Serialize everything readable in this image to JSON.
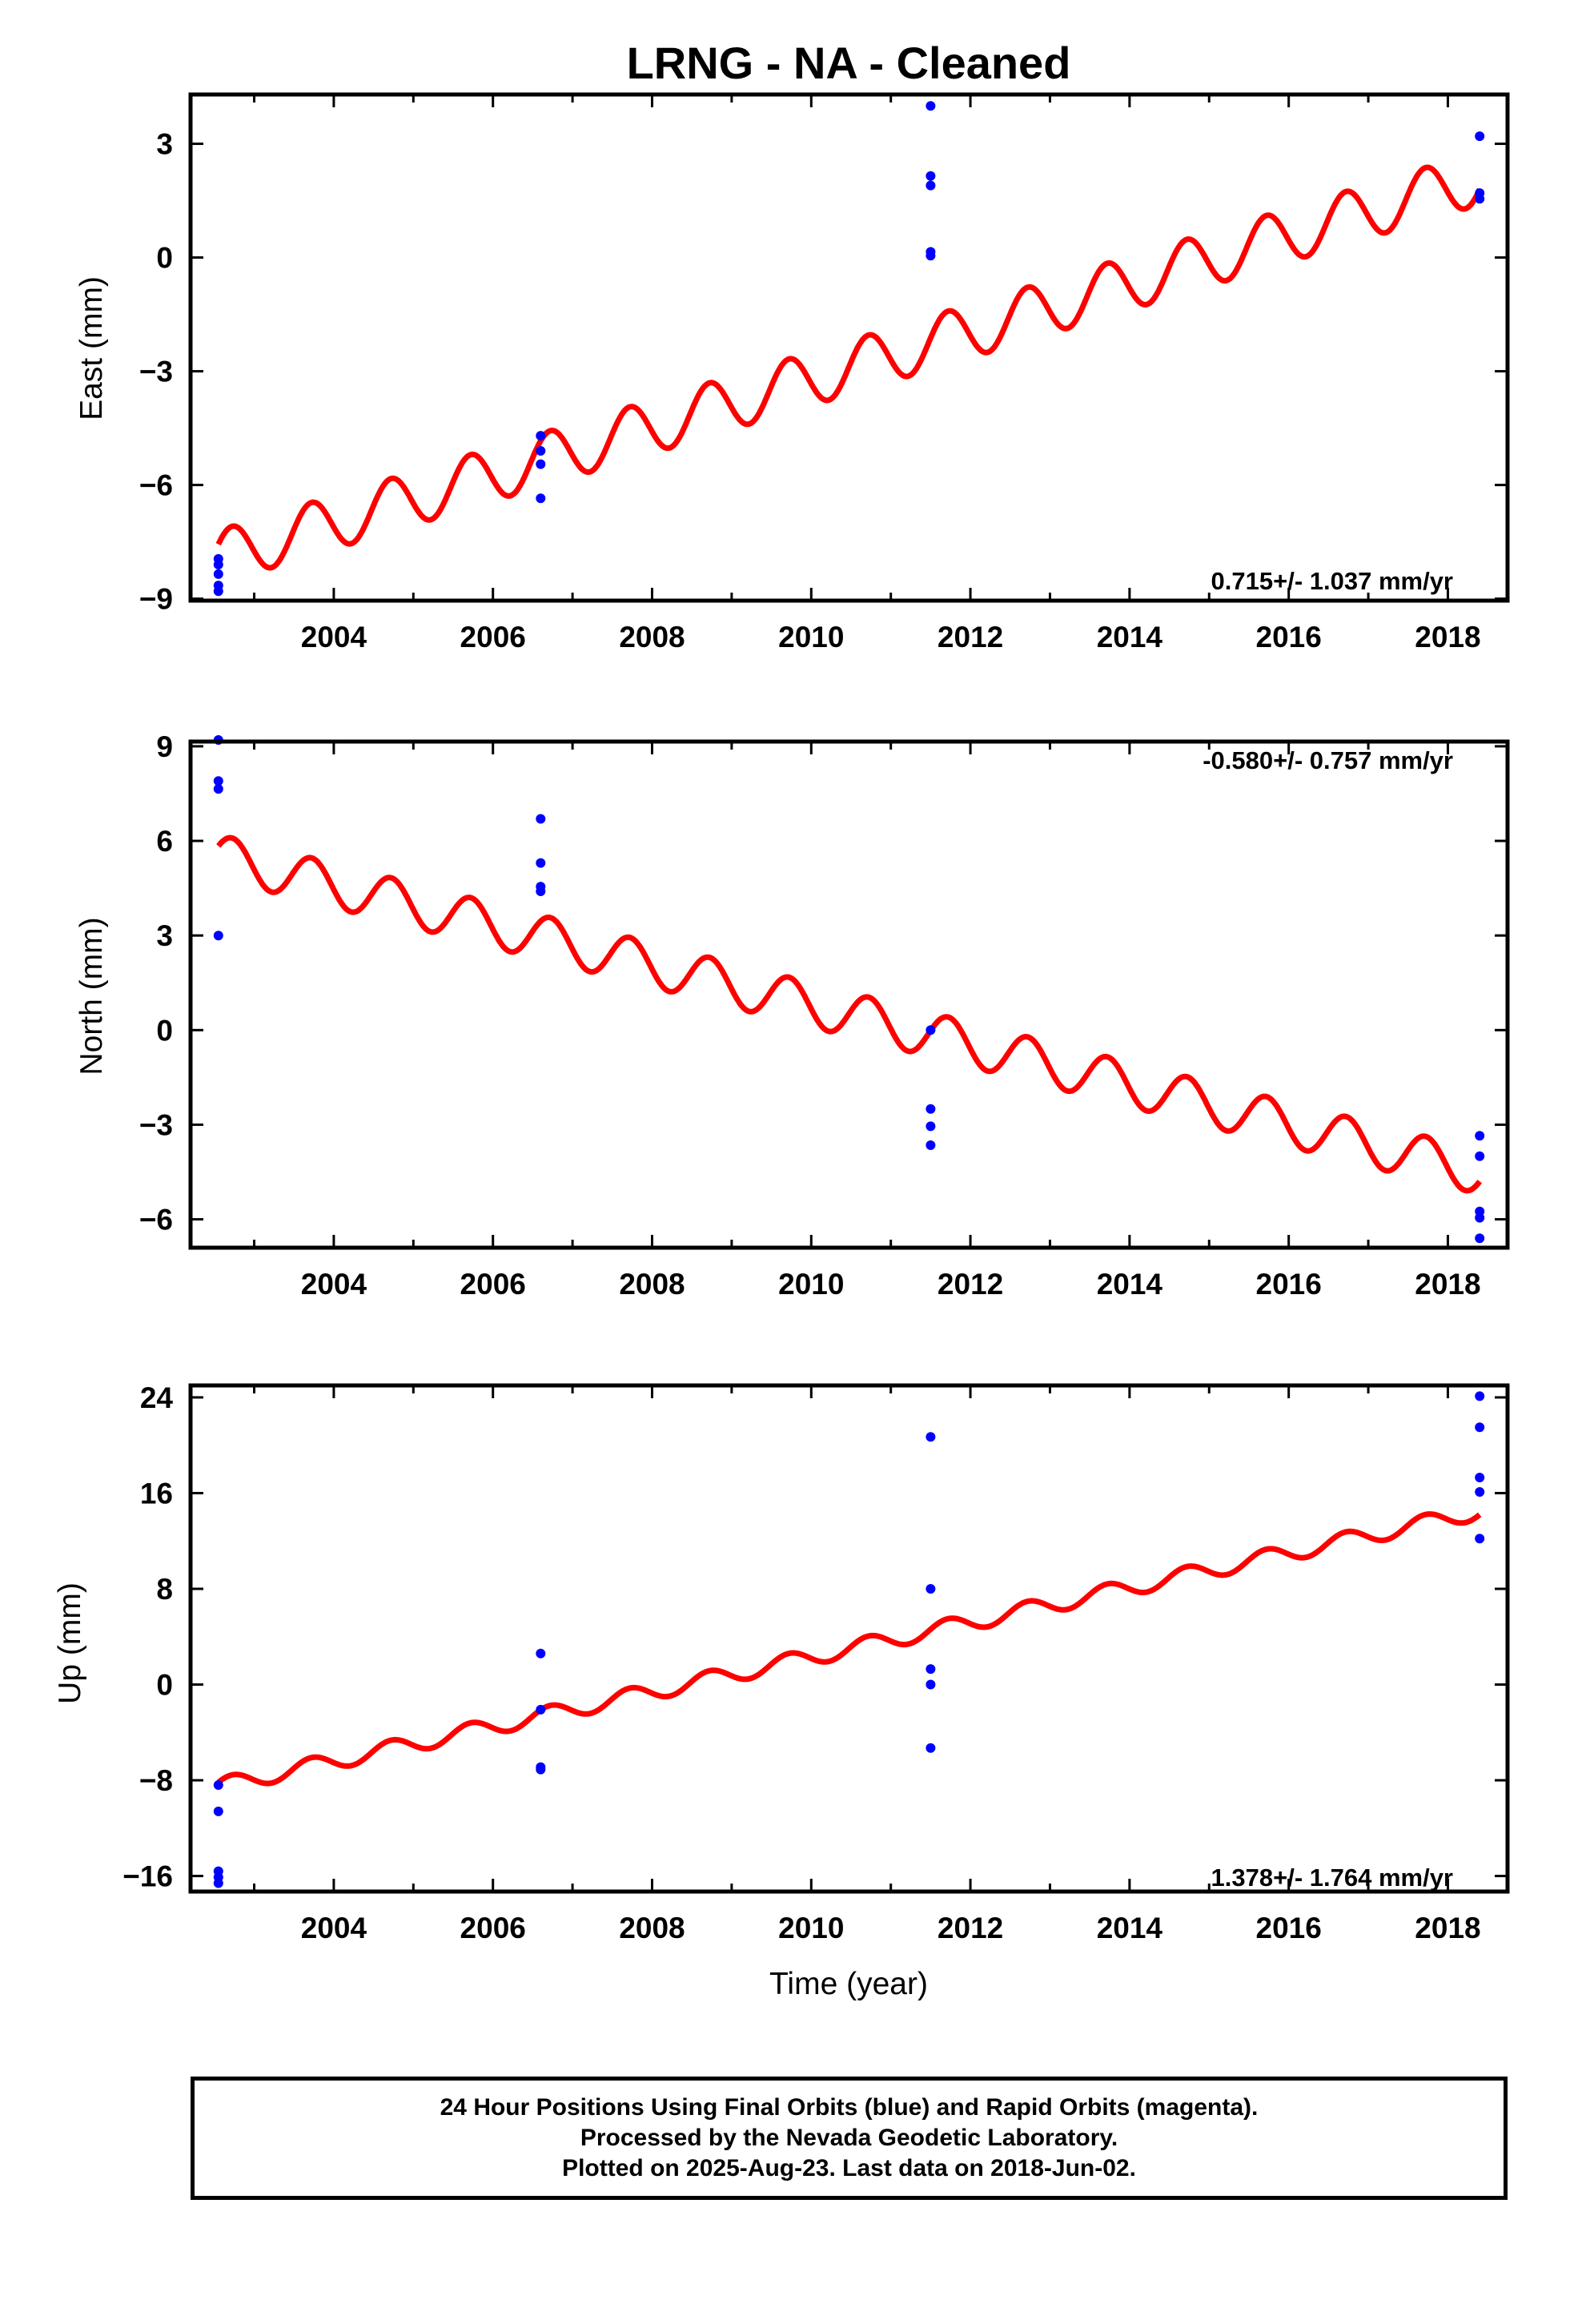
{
  "title": "LRNG  - NA - Cleaned",
  "xlabel": "Time (year)",
  "footer": {
    "line1": "24 Hour Positions Using Final Orbits (blue) and Rapid Orbits (magenta).",
    "line2": "Processed by the Nevada Geodetic Laboratory.",
    "line3": "Plotted on 2025-Aug-23. Last data on 2018-Jun-02."
  },
  "colors": {
    "model": "#ff0000",
    "final_orbit_points": "#0000ff",
    "frame": "#000000"
  },
  "chart_data": [
    {
      "type": "scatter",
      "ylabel": "East (mm)",
      "rate": "0.715+/- 1.037 mm/yr",
      "xlim": [
        2002.2,
        2018.75
      ],
      "ylim": [
        -9.05,
        4.3
      ],
      "xticks": [
        "2004",
        "2006",
        "2008",
        "2010",
        "2012",
        "2014",
        "2016",
        "2018"
      ],
      "yticks": [
        "3",
        "0",
        "−3",
        "−6",
        "−9"
      ],
      "ytick_values": [
        3,
        0,
        -3,
        -6,
        -9
      ],
      "model": {
        "start": [
          2002.55,
          -7.9
        ],
        "end": [
          2018.4,
          2.1
        ],
        "annual_amplitude": 0.7,
        "phase_year": 2002.72,
        "t0": 2010.5
      },
      "points": [
        {
          "x": 2002.55,
          "y": -7.95
        },
        {
          "x": 2002.55,
          "y": -8.1
        },
        {
          "x": 2002.55,
          "y": -8.35
        },
        {
          "x": 2002.55,
          "y": -8.65
        },
        {
          "x": 2002.55,
          "y": -8.8
        },
        {
          "x": 2006.6,
          "y": -4.7
        },
        {
          "x": 2006.6,
          "y": -5.1
        },
        {
          "x": 2006.6,
          "y": -5.45
        },
        {
          "x": 2006.6,
          "y": -6.35
        },
        {
          "x": 2011.5,
          "y": 4.0
        },
        {
          "x": 2011.5,
          "y": 2.15
        },
        {
          "x": 2011.5,
          "y": 1.9
        },
        {
          "x": 2011.5,
          "y": 0.15
        },
        {
          "x": 2011.5,
          "y": 0.05
        },
        {
          "x": 2018.4,
          "y": 3.2
        },
        {
          "x": 2018.4,
          "y": 1.7
        },
        {
          "x": 2018.4,
          "y": 1.55
        }
      ]
    },
    {
      "type": "scatter",
      "ylabel": "North (mm)",
      "rate": "-0.580+/- 0.757 mm/yr",
      "xlim": [
        2002.2,
        2018.75
      ],
      "ylim": [
        -6.9,
        9.15
      ],
      "xticks": [
        "2004",
        "2006",
        "2008",
        "2010",
        "2012",
        "2014",
        "2016",
        "2018"
      ],
      "yticks": [
        "9",
        "6",
        "3",
        "0",
        "−3",
        "−6"
      ],
      "ytick_values": [
        9,
        6,
        3,
        0,
        -3,
        -6
      ],
      "model": {
        "start": [
          2002.55,
          5.5
        ],
        "end": [
          2018.4,
          -4.5
        ],
        "annual_amplitude": 0.7,
        "phase_year": 2002.72,
        "t0": 2010.5
      },
      "points": [
        {
          "x": 2002.55,
          "y": 9.2
        },
        {
          "x": 2002.55,
          "y": 7.9
        },
        {
          "x": 2002.55,
          "y": 7.65
        },
        {
          "x": 2002.55,
          "y": 3.0
        },
        {
          "x": 2006.6,
          "y": 6.7
        },
        {
          "x": 2006.6,
          "y": 5.3
        },
        {
          "x": 2006.6,
          "y": 4.55
        },
        {
          "x": 2006.6,
          "y": 4.4
        },
        {
          "x": 2011.5,
          "y": 0.0
        },
        {
          "x": 2011.5,
          "y": -2.5
        },
        {
          "x": 2011.5,
          "y": -3.05
        },
        {
          "x": 2011.5,
          "y": -3.65
        },
        {
          "x": 2018.4,
          "y": -3.35
        },
        {
          "x": 2018.4,
          "y": -4.0
        },
        {
          "x": 2018.4,
          "y": -5.75
        },
        {
          "x": 2018.4,
          "y": -5.95
        },
        {
          "x": 2018.4,
          "y": -6.6
        }
      ]
    },
    {
      "type": "scatter",
      "ylabel": "Up (mm)",
      "rate": "1.378+/- 1.764 mm/yr",
      "xlim": [
        2002.2,
        2018.75
      ],
      "ylim": [
        -17.3,
        25.0
      ],
      "xticks": [
        "2004",
        "2006",
        "2008",
        "2010",
        "2012",
        "2014",
        "2016",
        "2018"
      ],
      "yticks": [
        "24",
        "16",
        "8",
        "0",
        "−8",
        "−16"
      ],
      "ytick_values": [
        24,
        16,
        8,
        0,
        -8,
        -16
      ],
      "model": {
        "start": [
          2002.55,
          -8.5
        ],
        "end": [
          2018.4,
          14.5
        ],
        "annual_amplitude": 0.7,
        "phase_year": 2002.72,
        "t0": 2010.5
      },
      "points": [
        {
          "x": 2002.55,
          "y": -8.4
        },
        {
          "x": 2002.55,
          "y": -10.6
        },
        {
          "x": 2002.55,
          "y": -15.6
        },
        {
          "x": 2002.55,
          "y": -16.1
        },
        {
          "x": 2002.55,
          "y": -16.6
        },
        {
          "x": 2006.6,
          "y": 2.6
        },
        {
          "x": 2006.6,
          "y": -2.1
        },
        {
          "x": 2006.6,
          "y": -6.9
        },
        {
          "x": 2006.6,
          "y": -7.1
        },
        {
          "x": 2011.5,
          "y": 20.7
        },
        {
          "x": 2011.5,
          "y": 8.0
        },
        {
          "x": 2011.5,
          "y": 1.3
        },
        {
          "x": 2011.5,
          "y": 0.0
        },
        {
          "x": 2011.5,
          "y": -5.3
        },
        {
          "x": 2018.4,
          "y": 24.1
        },
        {
          "x": 2018.4,
          "y": 21.5
        },
        {
          "x": 2018.4,
          "y": 17.3
        },
        {
          "x": 2018.4,
          "y": 16.1
        },
        {
          "x": 2018.4,
          "y": 12.2
        }
      ]
    }
  ]
}
